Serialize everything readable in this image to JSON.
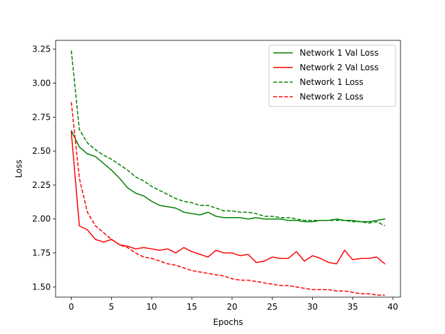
{
  "chart_data": {
    "type": "line",
    "xlabel": "Epochs",
    "ylabel": "Loss",
    "xlim": [
      -1.95,
      40.95
    ],
    "ylim": [
      1.425,
      3.315
    ],
    "xticks": [
      0,
      5,
      10,
      15,
      20,
      25,
      30,
      35,
      40
    ],
    "yticks": [
      1.5,
      1.75,
      2.0,
      2.25,
      2.5,
      2.75,
      3.0,
      3.25
    ],
    "ytick_labels": [
      "1.50",
      "1.75",
      "2.00",
      "2.25",
      "2.50",
      "2.75",
      "3.00",
      "3.25"
    ],
    "grid": false,
    "legend_position": "top-right",
    "x": [
      0,
      1,
      2,
      3,
      4,
      5,
      6,
      7,
      8,
      9,
      10,
      11,
      12,
      13,
      14,
      15,
      16,
      17,
      18,
      19,
      20,
      21,
      22,
      23,
      24,
      25,
      26,
      27,
      28,
      29,
      30,
      31,
      32,
      33,
      34,
      35,
      36,
      37,
      38,
      39
    ],
    "series": [
      {
        "name": "Network 1 Val Loss",
        "color": "#008000",
        "style": "solid",
        "values": [
          2.65,
          2.53,
          2.48,
          2.46,
          2.41,
          2.36,
          2.3,
          2.23,
          2.19,
          2.17,
          2.13,
          2.1,
          2.09,
          2.08,
          2.05,
          2.04,
          2.03,
          2.05,
          2.02,
          2.01,
          2.01,
          2.01,
          2.0,
          2.01,
          2.0,
          2.0,
          2.0,
          1.99,
          1.99,
          1.98,
          1.98,
          1.99,
          1.99,
          2.0,
          1.99,
          1.99,
          1.98,
          1.98,
          1.99,
          2.0
        ]
      },
      {
        "name": "Network 2 Val Loss",
        "color": "#ff0000",
        "style": "solid",
        "values": [
          2.64,
          1.95,
          1.92,
          1.85,
          1.83,
          1.85,
          1.81,
          1.8,
          1.78,
          1.79,
          1.78,
          1.77,
          1.78,
          1.75,
          1.79,
          1.76,
          1.74,
          1.72,
          1.77,
          1.75,
          1.75,
          1.73,
          1.74,
          1.68,
          1.69,
          1.72,
          1.71,
          1.71,
          1.76,
          1.69,
          1.73,
          1.71,
          1.68,
          1.67,
          1.77,
          1.7,
          1.71,
          1.71,
          1.72,
          1.67
        ]
      },
      {
        "name": "Network 1 Loss",
        "color": "#008000",
        "style": "dashed",
        "values": [
          3.24,
          2.66,
          2.56,
          2.51,
          2.47,
          2.44,
          2.4,
          2.36,
          2.31,
          2.28,
          2.24,
          2.21,
          2.18,
          2.15,
          2.13,
          2.12,
          2.1,
          2.1,
          2.08,
          2.06,
          2.06,
          2.05,
          2.05,
          2.04,
          2.02,
          2.02,
          2.01,
          2.01,
          2.0,
          1.99,
          1.99,
          1.99,
          1.99,
          1.99,
          1.99,
          1.98,
          1.98,
          1.97,
          1.98,
          1.95
        ]
      },
      {
        "name": "Network 2 Loss",
        "color": "#ff0000",
        "style": "dashed",
        "values": [
          2.86,
          2.3,
          2.05,
          1.95,
          1.9,
          1.85,
          1.81,
          1.79,
          1.75,
          1.72,
          1.71,
          1.69,
          1.67,
          1.66,
          1.64,
          1.62,
          1.61,
          1.6,
          1.59,
          1.58,
          1.56,
          1.55,
          1.55,
          1.54,
          1.53,
          1.52,
          1.51,
          1.51,
          1.5,
          1.49,
          1.48,
          1.48,
          1.48,
          1.47,
          1.47,
          1.46,
          1.45,
          1.45,
          1.44,
          1.44
        ]
      }
    ]
  }
}
